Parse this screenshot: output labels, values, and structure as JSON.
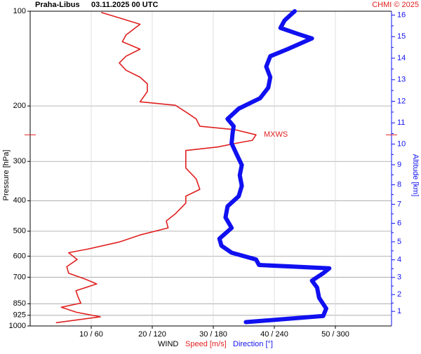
{
  "chart_data": {
    "type": "profile",
    "title": "Praha-Libus",
    "subtitle": "03.11.2025 00 UTC",
    "credit": "CHMI © 2025",
    "ylabel": "Pressure [hPa]",
    "y2label": "Altitude [km]",
    "xlabel": "WIND",
    "ylim": [
      100,
      1000
    ],
    "log_y": true,
    "yticks": [
      100,
      200,
      300,
      400,
      500,
      600,
      700,
      850,
      925,
      1000
    ],
    "xlim": [
      0,
      59.2
    ],
    "x2lim": [
      0,
      355.2
    ],
    "xticks": [
      {
        "value": 10,
        "label": "10 / 60"
      },
      {
        "value": 20,
        "label": "20 / 120"
      },
      {
        "value": 30,
        "label": "30 / 180"
      },
      {
        "value": 40,
        "label": "40 / 240"
      },
      {
        "value": 50,
        "label": "50 / 300"
      }
    ],
    "y2ticks": [
      1,
      2,
      3,
      4,
      5,
      6,
      7,
      8,
      9,
      10,
      11,
      12,
      13,
      14,
      15,
      16
    ],
    "grid": true,
    "annotation": {
      "text": "MXWS",
      "pressure": 247,
      "color": "#e02020"
    },
    "series": [
      {
        "name": "Speed [m/s]",
        "color": "#e02020",
        "axis": "x",
        "pressure": [
          976,
          935,
          905,
          872,
          846,
          814,
          773,
          735,
          708,
          680,
          648,
          615,
          585,
          570,
          541,
          514,
          488,
          464,
          440,
          407,
          387,
          368,
          341,
          315,
          292,
          277,
          270,
          263,
          257,
          247,
          238,
          232,
          220,
          209,
          199,
          194,
          180,
          170,
          162,
          154,
          146,
          139,
          132,
          125,
          119,
          110,
          105,
          101
        ],
        "values": [
          4.3,
          11.5,
          7.6,
          5.1,
          8.3,
          7.9,
          7.5,
          10.9,
          8.9,
          6.3,
          6.0,
          7.7,
          6.3,
          9.4,
          14.6,
          18,
          22.6,
          22.3,
          23.8,
          25.5,
          25.5,
          27.8,
          27.2,
          25.5,
          25.5,
          25.5,
          30.7,
          33.6,
          36.4,
          37,
          33.6,
          27.8,
          27.2,
          25.5,
          23.8,
          18,
          19.2,
          19.2,
          18,
          15.7,
          14.6,
          15.7,
          18,
          15.1,
          15.7,
          18,
          14.6,
          11.7
        ]
      },
      {
        "name": "Direction [°]",
        "color": "#1010f0",
        "axis": "x2",
        "pressure": [
          972,
          930,
          880,
          814,
          755,
          718,
          680,
          656,
          640,
          615,
          585,
          556,
          528,
          488,
          452,
          417,
          387,
          359,
          332,
          308,
          285,
          263,
          244,
          232,
          220,
          204,
          189,
          175,
          162,
          150,
          139,
          132,
          122,
          118,
          113,
          107,
          102,
          100
        ],
        "values": [
          212,
          288,
          291,
          284,
          282,
          277,
          288,
          294,
          225,
          222,
          198,
          188,
          186,
          198,
          192,
          194,
          205,
          208,
          206,
          208,
          203,
          198,
          199,
          200,
          194,
          205,
          226,
          234,
          236,
          232,
          236,
          253,
          277,
          263,
          246,
          250,
          257,
          260
        ]
      }
    ]
  }
}
